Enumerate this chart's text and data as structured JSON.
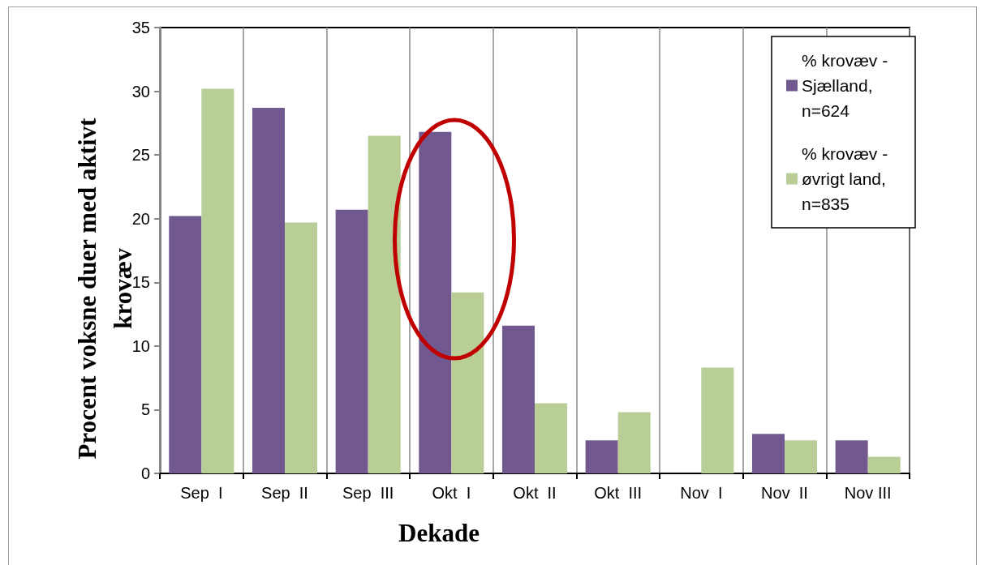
{
  "chart_data": {
    "type": "bar",
    "categories": [
      "Sep  I",
      "Sep  II",
      "Sep  III",
      "Okt  I",
      "Okt  II",
      "Okt  III",
      "Nov  I",
      "Nov  II",
      "Nov III"
    ],
    "series": [
      {
        "name": "% krovæv - Sjælland, n=624",
        "color": "#71588f",
        "values": [
          20.2,
          28.7,
          20.7,
          26.8,
          11.6,
          2.6,
          0,
          3.1,
          2.6
        ]
      },
      {
        "name": "% krovæv - øvrigt land, n=835",
        "color": "#b9cd96",
        "values": [
          30.2,
          19.7,
          26.5,
          14.2,
          5.5,
          4.8,
          8.3,
          2.6,
          1.3
        ]
      }
    ],
    "xlabel": "Dekade",
    "ylabel": "Procent voksne duer med aktivt krovæv",
    "ylim": [
      0,
      35
    ],
    "yticks": [
      0,
      5,
      10,
      15,
      20,
      25,
      30,
      35
    ],
    "grid": "x",
    "legend": "top right"
  }
}
